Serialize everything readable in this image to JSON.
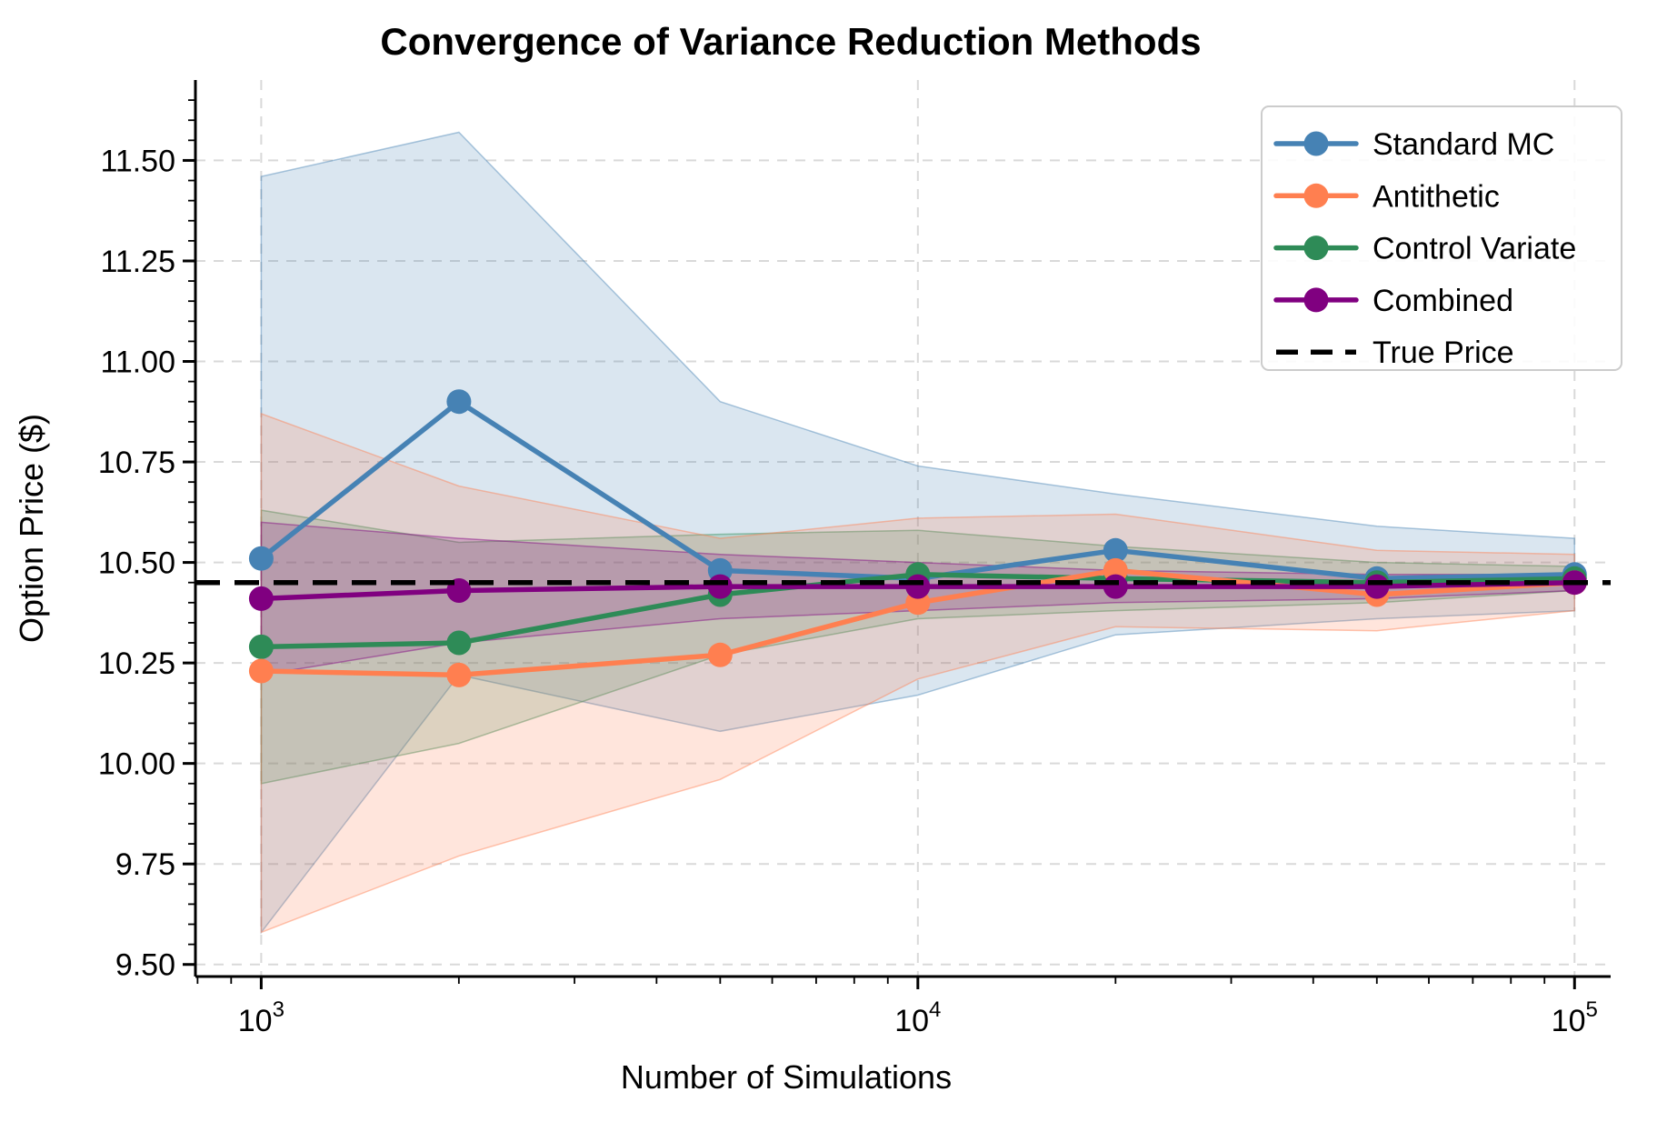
{
  "chart_data": {
    "type": "line",
    "title": "Convergence of Variance Reduction Methods",
    "xlabel": "Number of Simulations",
    "ylabel": "Option Price ($)",
    "x_scale": "log",
    "grid": true,
    "legend_position": "top-right",
    "x": [
      1000,
      2000,
      5000,
      10000,
      20000,
      50000,
      100000
    ],
    "x_ticks": [
      {
        "value": 1000,
        "label": "10^3"
      },
      {
        "value": 10000,
        "label": "10^4"
      },
      {
        "value": 100000,
        "label": "10^5"
      }
    ],
    "y_ticks": [
      9.5,
      9.75,
      10.0,
      10.25,
      10.5,
      10.75,
      11.0,
      11.25,
      11.5
    ],
    "xlim": [
      794,
      113500
    ],
    "ylim": [
      9.47,
      11.7
    ],
    "y_minor_step": 0.05,
    "series": [
      {
        "name": "Standard MC",
        "color": "#4682B4",
        "values": [
          10.51,
          10.9,
          10.48,
          10.46,
          10.53,
          10.46,
          10.47
        ],
        "band_lower": [
          9.58,
          10.22,
          10.08,
          10.17,
          10.32,
          10.36,
          10.38
        ],
        "band_upper": [
          11.46,
          11.57,
          10.9,
          10.74,
          10.67,
          10.59,
          10.56
        ]
      },
      {
        "name": "Antithetic",
        "color": "#FF7F50",
        "values": [
          10.23,
          10.22,
          10.27,
          10.4,
          10.48,
          10.42,
          10.45
        ],
        "band_lower": [
          9.58,
          9.77,
          9.96,
          10.21,
          10.34,
          10.33,
          10.38
        ],
        "band_upper": [
          10.87,
          10.69,
          10.56,
          10.61,
          10.62,
          10.53,
          10.52
        ]
      },
      {
        "name": "Control Variate",
        "color": "#2E8B57",
        "values": [
          10.29,
          10.3,
          10.42,
          10.47,
          10.46,
          10.45,
          10.46
        ],
        "band_lower": [
          9.95,
          10.05,
          10.27,
          10.36,
          10.38,
          10.4,
          10.43
        ],
        "band_upper": [
          10.63,
          10.55,
          10.57,
          10.58,
          10.54,
          10.5,
          10.49
        ]
      },
      {
        "name": "Combined",
        "color": "#800080",
        "values": [
          10.41,
          10.43,
          10.44,
          10.44,
          10.44,
          10.44,
          10.45
        ],
        "band_lower": [
          10.22,
          10.3,
          10.36,
          10.38,
          10.4,
          10.41,
          10.43
        ],
        "band_upper": [
          10.6,
          10.56,
          10.52,
          10.5,
          10.48,
          10.47,
          10.47
        ]
      }
    ],
    "true_price": {
      "label": "True Price",
      "value": 10.45,
      "color": "#000000",
      "style": "dashed"
    },
    "legend_entries": [
      "Standard MC",
      "Antithetic",
      "Control Variate",
      "Combined",
      "True Price"
    ],
    "colors": {
      "grid": "#d9d9d9",
      "spine": "#000000",
      "legend_border": "#cccccc",
      "background": "#ffffff"
    }
  }
}
